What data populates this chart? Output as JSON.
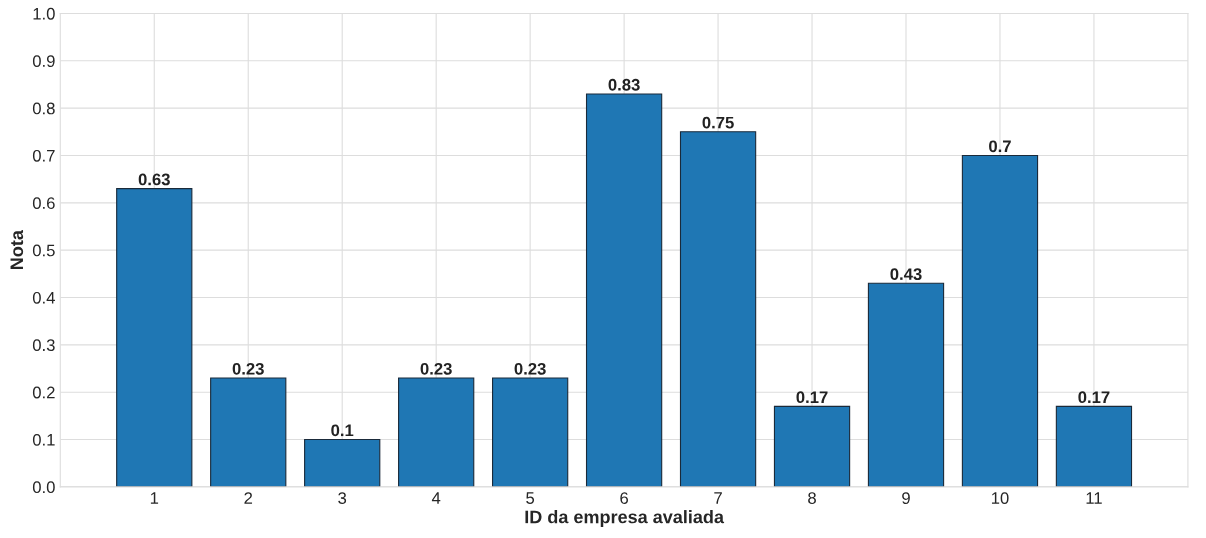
{
  "chart_data": {
    "type": "bar",
    "xlabel": "ID da empresa avaliada",
    "ylabel": "Nota",
    "categories": [
      "1",
      "2",
      "3",
      "4",
      "5",
      "6",
      "7",
      "8",
      "9",
      "10",
      "11"
    ],
    "values": [
      0.63,
      0.23,
      0.1,
      0.23,
      0.23,
      0.83,
      0.75,
      0.17,
      0.43,
      0.7,
      0.17
    ],
    "color": "#1f77b4",
    "ylim": [
      0,
      1
    ],
    "yticks": [
      {
        "value": 0,
        "label": "0.0"
      },
      0.1,
      0.2,
      0.3,
      0.4,
      0.5,
      0.6,
      0.7,
      0.8,
      0.9,
      {
        "value": 1,
        "label": "1.0"
      }
    ],
    "grid": true,
    "data_labels": true
  }
}
